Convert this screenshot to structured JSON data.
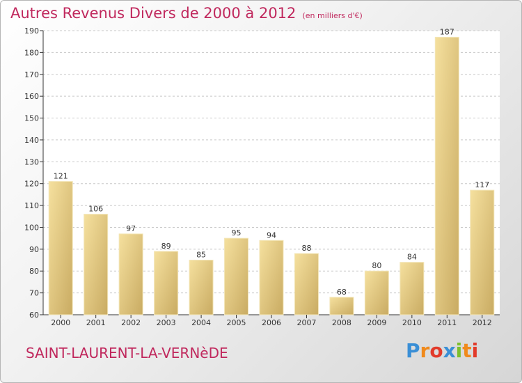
{
  "chart_data": {
    "type": "bar",
    "title": "Autres Revenus Divers de 2000 à 2012",
    "subtitle": "(en milliers d'€)",
    "categories": [
      "2000",
      "2001",
      "2002",
      "2003",
      "2004",
      "2005",
      "2006",
      "2007",
      "2008",
      "2009",
      "2010",
      "2011",
      "2012"
    ],
    "values": [
      121,
      106,
      97,
      89,
      85,
      95,
      94,
      88,
      68,
      80,
      84,
      187,
      117
    ],
    "ylim": [
      60,
      190
    ],
    "yticks": [
      60,
      70,
      80,
      90,
      100,
      110,
      120,
      130,
      140,
      150,
      160,
      170,
      180,
      190
    ],
    "grid": "horizontal dashed",
    "bar_color_light": "#f5e09e",
    "bar_color_dark": "#c9ab62",
    "xlabel": "",
    "ylabel": ""
  },
  "commune": "SAINT-LAURENT-LA-VERNèDE",
  "logo": {
    "letters": [
      "P",
      "r",
      "o",
      "x",
      "i",
      "t",
      "i"
    ],
    "colors": [
      "#3a8fd6",
      "#f08a1c",
      "#e23a2a",
      "#3a8fd6",
      "#7cbf2c",
      "#f08a1c",
      "#e23a2a"
    ]
  },
  "colors": {
    "title": "#c0285d",
    "axis": "#333333"
  }
}
